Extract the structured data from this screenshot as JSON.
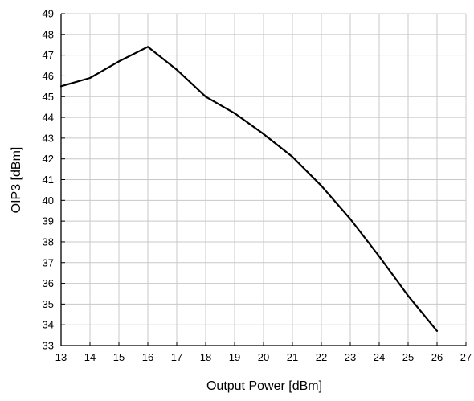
{
  "chart_data": {
    "type": "line",
    "title": "",
    "xlabel": "Output Power [dBm]",
    "ylabel": "OIP3 [dBm]",
    "xlim": [
      13,
      27
    ],
    "ylim": [
      33,
      49
    ],
    "x_ticks": [
      "13",
      "14",
      "15",
      "16",
      "17",
      "18",
      "19",
      "20",
      "21",
      "22",
      "23",
      "24",
      "25",
      "26",
      "27"
    ],
    "y_ticks": [
      "33",
      "34",
      "35",
      "36",
      "37",
      "38",
      "39",
      "40",
      "41",
      "42",
      "43",
      "44",
      "45",
      "46",
      "47",
      "48",
      "49"
    ],
    "grid": true,
    "legend": "none",
    "series": [
      {
        "x": [
          13,
          14,
          15,
          16,
          17,
          18,
          19,
          20,
          21,
          22,
          23,
          24,
          25,
          26
        ],
        "y": [
          45.5,
          45.9,
          46.7,
          47.4,
          46.3,
          45.0,
          44.2,
          43.2,
          42.1,
          40.7,
          39.1,
          37.3,
          35.4,
          33.7
        ],
        "color": "#000000"
      }
    ],
    "colors": {
      "grid": "#c8c8c8",
      "axis": "#000000",
      "line": "#000000"
    }
  }
}
